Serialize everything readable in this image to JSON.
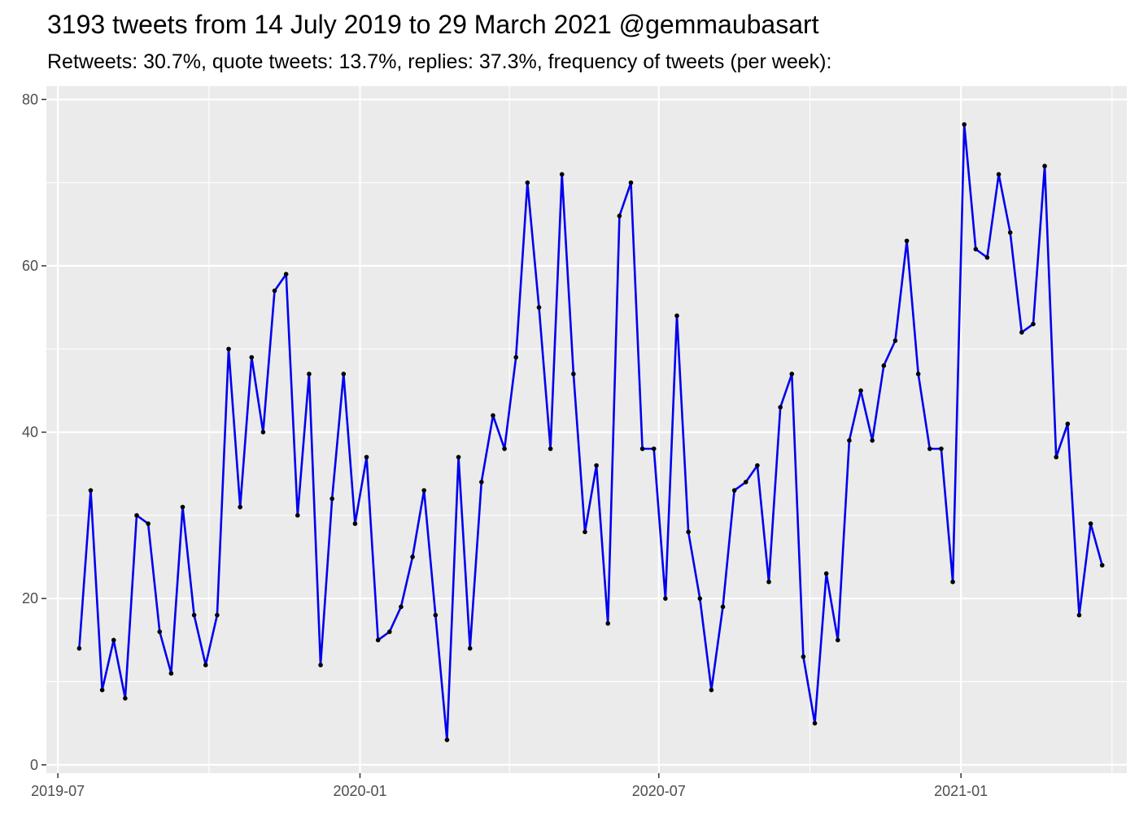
{
  "chart_data": {
    "type": "line",
    "title": "3193 tweets from 14 July 2019 to 29 March 2021 @gemmaubasart",
    "subtitle": "Retweets: 30.7%, quote tweets: 13.7%, replies: 37.3%, frequency of tweets (per week):",
    "xlabel": "",
    "ylabel": "",
    "ylim": [
      0,
      80
    ],
    "y_ticks": [
      0,
      20,
      40,
      60,
      80
    ],
    "x_ticks": [
      "2019-07",
      "2020-01",
      "2020-07",
      "2021-01"
    ],
    "x_tick_dates": [
      "2019-07-01",
      "2020-01-01",
      "2020-07-01",
      "2021-01-01"
    ],
    "x_range": [
      "2019-06-24",
      "2021-04-12"
    ],
    "grid": true,
    "line_color": "#0000ee",
    "point_color": "#000000",
    "panel_background": "#ebebeb",
    "x": [
      "2019-07-14",
      "2019-07-21",
      "2019-07-28",
      "2019-08-04",
      "2019-08-11",
      "2019-08-18",
      "2019-08-25",
      "2019-09-01",
      "2019-09-08",
      "2019-09-15",
      "2019-09-22",
      "2019-09-29",
      "2019-10-06",
      "2019-10-13",
      "2019-10-20",
      "2019-10-27",
      "2019-11-03",
      "2019-11-10",
      "2019-11-17",
      "2019-11-24",
      "2019-12-01",
      "2019-12-08",
      "2019-12-15",
      "2019-12-22",
      "2019-12-29",
      "2020-01-05",
      "2020-01-12",
      "2020-01-19",
      "2020-01-26",
      "2020-02-02",
      "2020-02-09",
      "2020-02-16",
      "2020-02-23",
      "2020-03-01",
      "2020-03-08",
      "2020-03-15",
      "2020-03-22",
      "2020-03-29",
      "2020-04-05",
      "2020-04-12",
      "2020-04-19",
      "2020-04-26",
      "2020-05-03",
      "2020-05-10",
      "2020-05-17",
      "2020-05-24",
      "2020-05-31",
      "2020-06-07",
      "2020-06-14",
      "2020-06-21",
      "2020-06-28",
      "2020-07-05",
      "2020-07-12",
      "2020-07-19",
      "2020-07-26",
      "2020-08-02",
      "2020-08-09",
      "2020-08-16",
      "2020-08-23",
      "2020-08-30",
      "2020-09-06",
      "2020-09-13",
      "2020-09-20",
      "2020-09-27",
      "2020-10-04",
      "2020-10-11",
      "2020-10-18",
      "2020-10-25",
      "2020-11-01",
      "2020-11-08",
      "2020-11-15",
      "2020-11-22",
      "2020-11-29",
      "2020-12-06",
      "2020-12-13",
      "2020-12-20",
      "2020-12-27",
      "2021-01-03",
      "2021-01-10",
      "2021-01-17",
      "2021-01-24",
      "2021-01-31",
      "2021-02-07",
      "2021-02-14",
      "2021-02-21",
      "2021-02-28",
      "2021-03-07",
      "2021-03-14",
      "2021-03-21",
      "2021-03-28"
    ],
    "series": [
      {
        "values": [
          14,
          33,
          9,
          15,
          8,
          30,
          29,
          16,
          11,
          31,
          18,
          12,
          18,
          50,
          31,
          49,
          40,
          57,
          59,
          30,
          47,
          12,
          32,
          47,
          29,
          37,
          15,
          16,
          19,
          25,
          33,
          18,
          3,
          37,
          14,
          34,
          42,
          38,
          49,
          70,
          55,
          38,
          71,
          47,
          28,
          36,
          17,
          66,
          70,
          38,
          38,
          20,
          54,
          28,
          20,
          9,
          19,
          33,
          34,
          36,
          22,
          43,
          47,
          13,
          5,
          23,
          15,
          39,
          45,
          39,
          48,
          51,
          63,
          47,
          38,
          38,
          22,
          77,
          62,
          61,
          71,
          64,
          52,
          53,
          72,
          37,
          41,
          18,
          29,
          24
        ]
      }
    ]
  }
}
